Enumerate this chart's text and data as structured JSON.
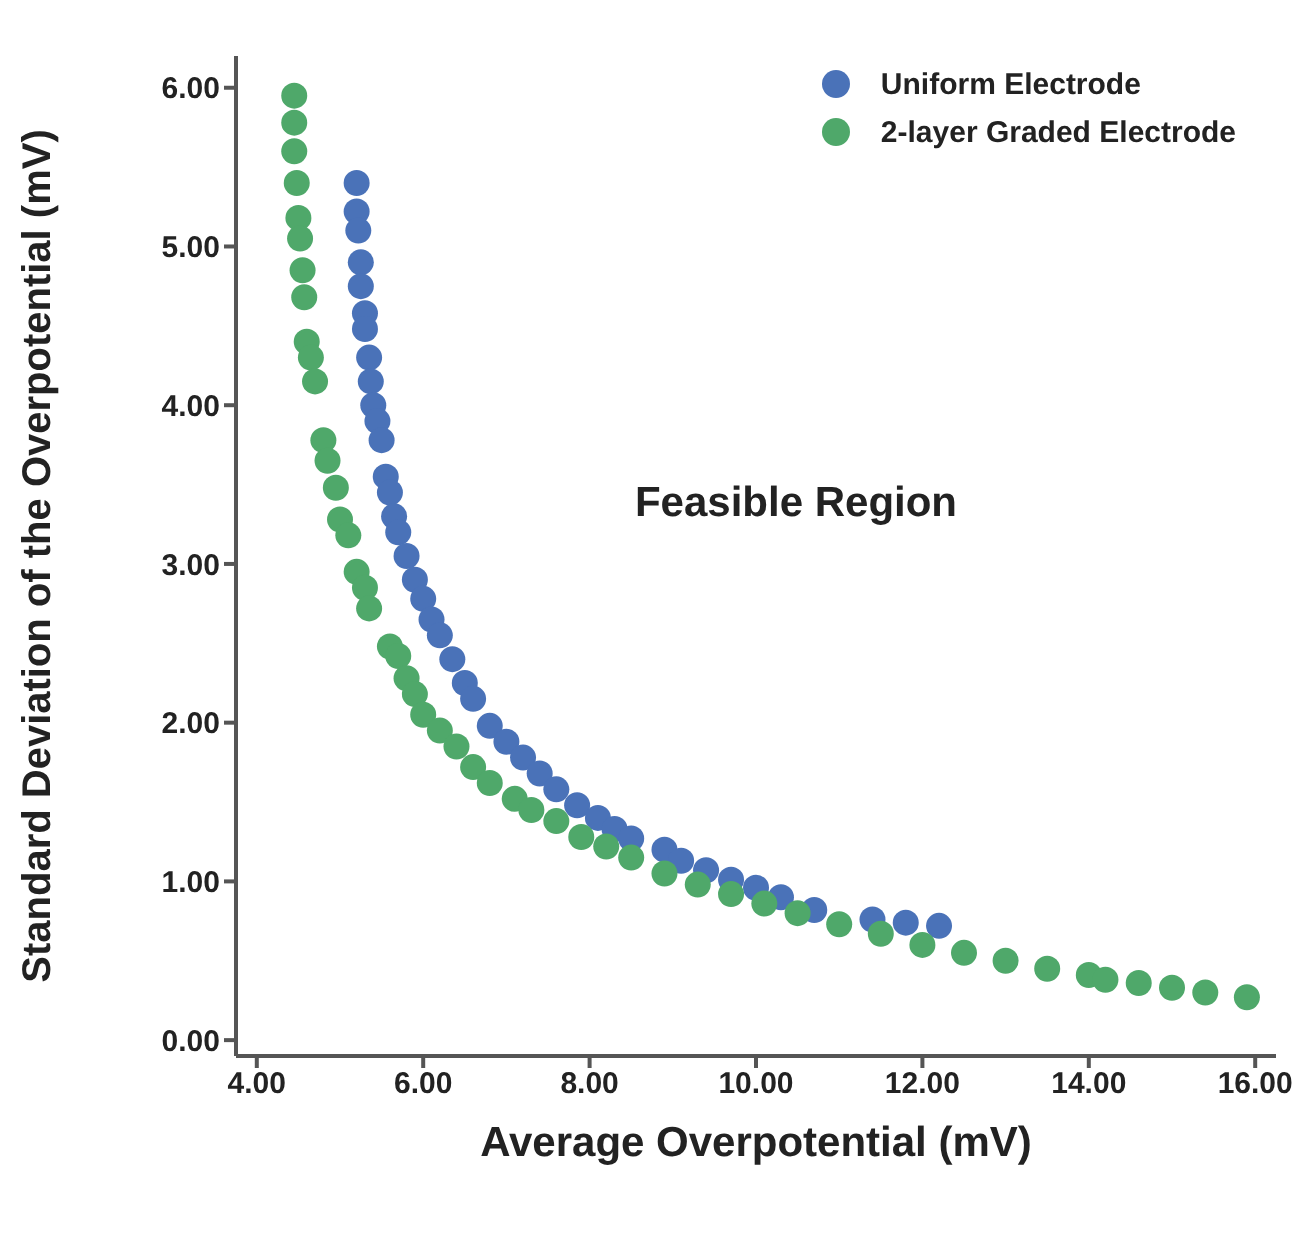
{
  "chart_data": {
    "type": "scatter",
    "xlabel": "Average Overpotential (mV)",
    "ylabel": "Standard Deviation of the Overpotential (mV)",
    "annotations": [
      "Feasible Region"
    ],
    "legend": "top right",
    "marker": "circle",
    "xlim": [
      3.75,
      16.25
    ],
    "ylim": [
      -0.1,
      6.2
    ],
    "xticks": [
      {
        "value": 4,
        "label": "4.00"
      },
      {
        "value": 6,
        "label": "6.00"
      },
      {
        "value": 8,
        "label": "8.00"
      },
      {
        "value": 10,
        "label": "10.00"
      },
      {
        "value": 12,
        "label": "12.00"
      },
      {
        "value": 14,
        "label": "14.00"
      },
      {
        "value": 16,
        "label": "16.00"
      }
    ],
    "yticks": [
      {
        "value": 0,
        "label": "0.00"
      },
      {
        "value": 1,
        "label": "1.00"
      },
      {
        "value": 2,
        "label": "2.00"
      },
      {
        "value": 3,
        "label": "3.00"
      },
      {
        "value": 4,
        "label": "4.00"
      },
      {
        "value": 5,
        "label": "5.00"
      },
      {
        "value": 6,
        "label": "6.00"
      }
    ],
    "series": [
      {
        "name": "Uniform Electrode",
        "color": "#4a72b8",
        "x": [
          5.2,
          5.2,
          5.22,
          5.25,
          5.25,
          5.3,
          5.3,
          5.35,
          5.37,
          5.4,
          5.45,
          5.5,
          5.55,
          5.6,
          5.65,
          5.7,
          5.8,
          5.9,
          6.0,
          6.1,
          6.2,
          6.35,
          6.5,
          6.6,
          6.8,
          7.0,
          7.2,
          7.4,
          7.6,
          7.85,
          8.1,
          8.3,
          8.5,
          8.9,
          9.1,
          9.4,
          9.7,
          10.0,
          10.3,
          10.7,
          11.4,
          11.8,
          12.2
        ],
        "values": [
          5.4,
          5.22,
          5.1,
          4.9,
          4.75,
          4.58,
          4.48,
          4.3,
          4.15,
          4.0,
          3.9,
          3.78,
          3.55,
          3.45,
          3.3,
          3.2,
          3.05,
          2.9,
          2.78,
          2.65,
          2.55,
          2.4,
          2.25,
          2.15,
          1.98,
          1.88,
          1.78,
          1.68,
          1.58,
          1.48,
          1.4,
          1.33,
          1.27,
          1.2,
          1.13,
          1.07,
          1.01,
          0.96,
          0.9,
          0.82,
          0.76,
          0.74,
          0.72
        ]
      },
      {
        "name": "2-layer Graded Electrode",
        "color": "#4fa86a",
        "x": [
          4.45,
          4.45,
          4.45,
          4.48,
          4.5,
          4.52,
          4.55,
          4.57,
          4.6,
          4.65,
          4.7,
          4.8,
          4.85,
          4.95,
          5.0,
          5.1,
          5.2,
          5.3,
          5.35,
          5.6,
          5.7,
          5.8,
          5.9,
          6.0,
          6.2,
          6.4,
          6.6,
          6.8,
          7.1,
          7.3,
          7.6,
          7.9,
          8.2,
          8.5,
          8.9,
          9.3,
          9.7,
          10.1,
          10.5,
          11.0,
          11.5,
          12.0,
          12.5,
          13.0,
          13.5,
          14.0,
          14.2,
          14.6,
          15.0,
          15.4,
          15.9
        ],
        "values": [
          5.95,
          5.78,
          5.6,
          5.4,
          5.18,
          5.05,
          4.85,
          4.68,
          4.4,
          4.3,
          4.15,
          3.78,
          3.65,
          3.48,
          3.28,
          3.18,
          2.95,
          2.85,
          2.72,
          2.48,
          2.42,
          2.28,
          2.18,
          2.05,
          1.95,
          1.85,
          1.72,
          1.62,
          1.52,
          1.45,
          1.38,
          1.28,
          1.22,
          1.15,
          1.05,
          0.98,
          0.92,
          0.86,
          0.8,
          0.73,
          0.67,
          0.6,
          0.55,
          0.5,
          0.45,
          0.41,
          0.38,
          0.36,
          0.33,
          0.3,
          0.27
        ]
      }
    ]
  }
}
